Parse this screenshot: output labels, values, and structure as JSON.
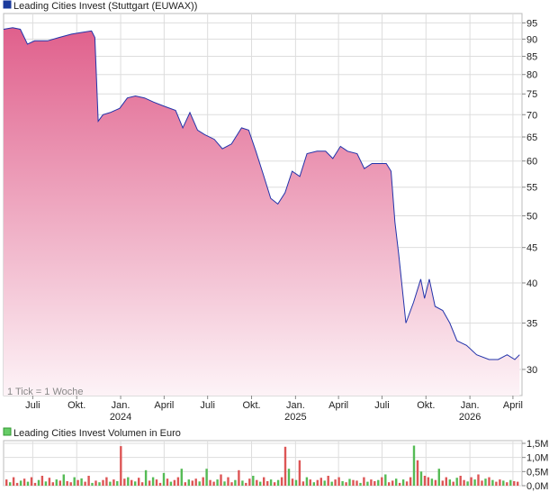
{
  "price_chart": {
    "legend_label": "Leading Cities Invest (Stuttgart (EUWAX))",
    "legend_color": "#1a3a9c",
    "note": "1 Tick = 1 Woche",
    "line_color": "#2233aa",
    "fill_top_color": "#e0608c",
    "fill_bottom_color": "#fdf3f7"
  },
  "volume_chart": {
    "legend_label": "Leading Cities Invest Volumen in Euro",
    "legend_color": "#66cc66",
    "up_color": "#55bb55",
    "down_color": "#dd5555"
  },
  "chart_data": [
    {
      "type": "area",
      "title": "Leading Cities Invest (Stuttgart (EUWAX))",
      "scale": "log",
      "ylim": [
        27.5,
        98
      ],
      "yticks": [
        30,
        35,
        40,
        45,
        50,
        55,
        60,
        65,
        70,
        75,
        80,
        85,
        90,
        95
      ],
      "xlim": [
        "2023-05-01",
        "2026-04-20"
      ],
      "x_ticks": [
        {
          "label": "Juli",
          "x": "2023-07-01",
          "year": ""
        },
        {
          "label": "Okt.",
          "x": "2023-10-01",
          "year": ""
        },
        {
          "label": "Jan.",
          "x": "2024-01-01",
          "year": "2024"
        },
        {
          "label": "April",
          "x": "2024-04-01",
          "year": ""
        },
        {
          "label": "Juli",
          "x": "2024-07-01",
          "year": ""
        },
        {
          "label": "Okt.",
          "x": "2024-10-01",
          "year": ""
        },
        {
          "label": "Jan.",
          "x": "2025-01-01",
          "year": "2025"
        },
        {
          "label": "April",
          "x": "2025-04-01",
          "year": ""
        },
        {
          "label": "Juli",
          "x": "2025-07-01",
          "year": ""
        },
        {
          "label": "Okt.",
          "x": "2025-10-01",
          "year": ""
        },
        {
          "label": "Jan.",
          "x": "2026-01-01",
          "year": "2026"
        },
        {
          "label": "April",
          "x": "2026-04-01",
          "year": ""
        }
      ],
      "grid": true,
      "series": [
        {
          "points": [
            [
              "2023-05-01",
              93.0
            ],
            [
              "2023-05-20",
              93.5
            ],
            [
              "2023-06-05",
              93.0
            ],
            [
              "2023-06-20",
              88.5
            ],
            [
              "2023-07-05",
              89.5
            ],
            [
              "2023-08-01",
              89.5
            ],
            [
              "2023-08-25",
              90.5
            ],
            [
              "2023-09-20",
              91.5
            ],
            [
              "2023-10-10",
              92.0
            ],
            [
              "2023-11-01",
              92.5
            ],
            [
              "2023-11-08",
              90.5
            ],
            [
              "2023-11-15",
              68.5
            ],
            [
              "2023-11-25",
              70.0
            ],
            [
              "2023-12-10",
              70.5
            ],
            [
              "2023-12-30",
              71.5
            ],
            [
              "2024-01-15",
              74.0
            ],
            [
              "2024-02-01",
              74.5
            ],
            [
              "2024-02-20",
              74.0
            ],
            [
              "2024-03-10",
              73.0
            ],
            [
              "2024-04-01",
              72.0
            ],
            [
              "2024-04-25",
              71.0
            ],
            [
              "2024-05-10",
              67.0
            ],
            [
              "2024-05-25",
              70.5
            ],
            [
              "2024-06-10",
              66.5
            ],
            [
              "2024-06-25",
              65.5
            ],
            [
              "2024-07-15",
              64.5
            ],
            [
              "2024-08-01",
              62.5
            ],
            [
              "2024-08-20",
              63.5
            ],
            [
              "2024-09-10",
              67.0
            ],
            [
              "2024-09-25",
              66.5
            ],
            [
              "2024-10-10",
              62.0
            ],
            [
              "2024-10-25",
              57.5
            ],
            [
              "2024-11-10",
              53.0
            ],
            [
              "2024-11-25",
              52.0
            ],
            [
              "2024-12-10",
              54.0
            ],
            [
              "2024-12-25",
              58.0
            ],
            [
              "2025-01-10",
              57.0
            ],
            [
              "2025-01-25",
              61.5
            ],
            [
              "2025-02-15",
              62.0
            ],
            [
              "2025-03-05",
              62.0
            ],
            [
              "2025-03-20",
              60.5
            ],
            [
              "2025-04-05",
              63.0
            ],
            [
              "2025-04-20",
              62.0
            ],
            [
              "2025-05-10",
              61.5
            ],
            [
              "2025-05-25",
              58.5
            ],
            [
              "2025-06-10",
              59.5
            ],
            [
              "2025-06-25",
              59.5
            ],
            [
              "2025-07-10",
              59.5
            ],
            [
              "2025-07-20",
              58.0
            ],
            [
              "2025-07-28",
              49.0
            ],
            [
              "2025-08-05",
              44.0
            ],
            [
              "2025-08-20",
              35.0
            ],
            [
              "2025-09-05",
              37.5
            ],
            [
              "2025-09-20",
              40.5
            ],
            [
              "2025-09-28",
              38.0
            ],
            [
              "2025-10-08",
              40.5
            ],
            [
              "2025-10-20",
              37.0
            ],
            [
              "2025-11-05",
              36.5
            ],
            [
              "2025-11-20",
              35.0
            ],
            [
              "2025-12-05",
              33.0
            ],
            [
              "2025-12-25",
              32.5
            ],
            [
              "2026-01-15",
              31.5
            ],
            [
              "2026-02-10",
              31.0
            ],
            [
              "2026-03-01",
              31.0
            ],
            [
              "2026-03-20",
              31.5
            ],
            [
              "2026-04-05",
              31.0
            ],
            [
              "2026-04-15",
              31.5
            ]
          ]
        }
      ]
    },
    {
      "type": "bar",
      "title": "Leading Cities Invest Volumen in Euro",
      "ylim": [
        0,
        1.5
      ],
      "yticks": [
        "0,0M",
        "0,5M",
        "1,0M",
        "1,5M"
      ],
      "ytick_values": [
        0,
        0.5,
        1.0,
        1.5
      ],
      "unit": "M",
      "values": [
        0.22,
        0.12,
        0.3,
        0.1,
        0.18,
        0.25,
        0.14,
        0.3,
        0.1,
        0.2,
        0.35,
        0.15,
        0.28,
        0.12,
        0.22,
        0.18,
        0.4,
        0.16,
        0.12,
        0.3,
        0.2,
        0.26,
        0.14,
        0.35,
        0.1,
        0.18,
        0.12,
        0.2,
        0.3,
        0.14,
        0.22,
        0.16,
        1.4,
        0.25,
        0.3,
        0.2,
        0.15,
        0.28,
        0.12,
        0.55,
        0.18,
        0.3,
        0.22,
        0.1,
        0.45,
        0.25,
        0.14,
        0.2,
        0.3,
        0.6,
        0.12,
        0.22,
        0.18,
        0.25,
        0.15,
        0.3,
        0.6,
        0.2,
        0.14,
        0.22,
        0.4,
        0.15,
        0.3,
        0.12,
        0.2,
        0.55,
        0.18,
        0.1,
        0.25,
        0.35,
        0.2,
        0.14,
        0.3,
        0.16,
        0.22,
        0.12,
        0.2,
        0.3,
        1.38,
        0.6,
        0.25,
        0.2,
        0.9,
        0.15,
        0.3,
        0.22,
        0.12,
        0.2,
        0.28,
        0.18,
        0.35,
        0.14,
        0.22,
        0.3,
        0.16,
        0.12,
        0.24,
        0.2,
        0.18,
        0.1,
        0.3,
        0.14,
        0.22,
        0.16,
        0.2,
        0.3,
        0.4,
        0.12,
        0.18,
        0.25,
        0.1,
        0.22,
        0.15,
        0.3,
        1.42,
        0.9,
        0.5,
        0.35,
        0.3,
        0.25,
        0.2,
        0.6,
        0.18,
        0.3,
        0.22,
        0.14,
        0.28,
        0.35,
        0.2,
        0.15,
        0.3,
        0.22,
        0.4,
        0.18,
        0.25,
        0.3,
        0.2,
        0.14,
        0.22,
        0.18,
        0.12,
        0.2,
        0.16,
        0.14
      ],
      "directions": "mixed"
    }
  ]
}
